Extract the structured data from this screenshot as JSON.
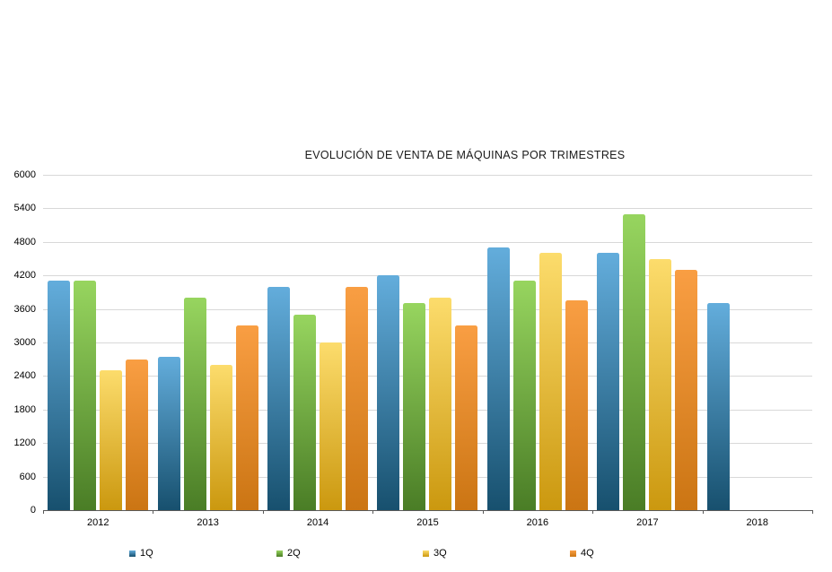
{
  "chart_data": {
    "type": "bar",
    "title": "EVOLUCIÓN DE VENTA DE MÁQUINAS POR TRIMESTRES",
    "categories": [
      "2012",
      "2013",
      "2014",
      "2015",
      "2016",
      "2017",
      "2018"
    ],
    "series": [
      {
        "name": "1Q",
        "color_top": "#63ADDC",
        "color_bottom": "#17506E",
        "values": [
          4100,
          2750,
          4000,
          4200,
          4700,
          4600,
          3700
        ]
      },
      {
        "name": "2Q",
        "color_top": "#97D55F",
        "color_bottom": "#4A7D26",
        "values": [
          4100,
          3800,
          3500,
          3700,
          4100,
          5300,
          null
        ]
      },
      {
        "name": "3Q",
        "color_top": "#FCDC6C",
        "color_bottom": "#CB980F",
        "values": [
          2500,
          2600,
          3000,
          3800,
          4600,
          4500,
          null
        ]
      },
      {
        "name": "4Q",
        "color_top": "#F99E43",
        "color_bottom": "#CB7513",
        "values": [
          2700,
          3300,
          4000,
          3300,
          3750,
          4300,
          null
        ]
      }
    ],
    "ylim": [
      0,
      6000
    ],
    "ytick_step": 600,
    "ytick_labels": [
      "0",
      "600",
      "1200",
      "1800",
      "2400",
      "3000",
      "3600",
      "4200",
      "4800",
      "5400",
      "6000"
    ],
    "xlabel": "",
    "ylabel": "",
    "grid": true,
    "legend_position": "bottom",
    "gridline_color": "#d8d8d8",
    "axis_color": "#595959"
  }
}
